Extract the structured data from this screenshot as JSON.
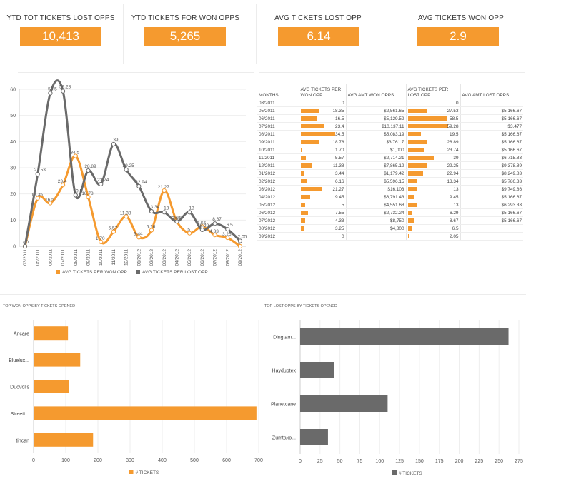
{
  "kpis": [
    {
      "title": "YTD TOT TICKETS LOST OPPS",
      "value": "10,413"
    },
    {
      "title": "YTD TICKETS FOR WON OPPS",
      "value": "5,265"
    },
    {
      "title": "AVG TICKETS LOST OPP",
      "value": "6.14"
    },
    {
      "title": "AVG TICKETS WON OPP",
      "value": "2.9"
    }
  ],
  "chart_data": [
    {
      "type": "line",
      "x": [
        "03/2011",
        "05/2011",
        "06/2011",
        "07/2011",
        "08/2011",
        "09/2011",
        "10/2011",
        "11/2011",
        "12/2011",
        "01/2012",
        "02/2012",
        "03/2012",
        "04/2012",
        "05/2012",
        "06/2012",
        "07/2012",
        "08/2012",
        "09/2012"
      ],
      "ylim": [
        0,
        60
      ],
      "yticks": [
        "0",
        "10",
        "20",
        "30",
        "40",
        "50",
        "60"
      ],
      "legend_position": "bottom",
      "series": [
        {
          "name": "AVG TICKETS PER WON OPP",
          "color": "#f59a2f",
          "values": [
            0,
            18.35,
            16.5,
            23.4,
            34.5,
            18.78,
            1.7,
            5.57,
            11.38,
            3.44,
            6.16,
            21.27,
            9.45,
            5,
            7.55,
            4.33,
            3.25,
            0
          ],
          "labels": [
            "0",
            "18.35",
            "16.5",
            "23.4",
            "34.5",
            "18.78",
            "1.70",
            "5.57",
            "11.38",
            "3.44",
            "6.16",
            "21.27",
            "9.45",
            "5",
            "7.55",
            "4.33",
            "3.25",
            "0"
          ]
        },
        {
          "name": "AVG TICKETS PER LOST OPP",
          "color": "#6a6a6a",
          "values": [
            0,
            27.53,
            58.5,
            59.28,
            19.5,
            28.89,
            23.74,
            39,
            29.25,
            22.94,
            13.34,
            13,
            9.45,
            13,
            6.29,
            8.67,
            6.5,
            2.05
          ],
          "labels": [
            "0",
            "27.53",
            "58.5",
            "59.28",
            "19.5",
            "28.89",
            "23.74",
            "39",
            "29.25",
            "22.94",
            "13.34",
            "13",
            "9.45",
            "13",
            "6.29",
            "8.67",
            "6.5",
            "2.05"
          ]
        }
      ]
    },
    {
      "type": "table",
      "columns": [
        "MONTHS",
        "AVG TICKETS PER WON OPP",
        "AVG AMT WON OPPS",
        "AVG TICKETS PER LOST OPP",
        "AVG AMT LOST OPPS"
      ],
      "rows": [
        [
          "03/2011",
          "0",
          "",
          "0",
          ""
        ],
        [
          "05/2011",
          "18.35",
          "$2,561.65",
          "27.53",
          "$5,166.67"
        ],
        [
          "06/2011",
          "16.5",
          "$5,129.59",
          "58.5",
          "$5,166.67"
        ],
        [
          "07/2011",
          "23.4",
          "$10,137.11",
          "59.28",
          "$3,477"
        ],
        [
          "08/2011",
          "34.5",
          "$5,083.19",
          "19.5",
          "$5,166.67"
        ],
        [
          "09/2011",
          "18.78",
          "$3,761.7",
          "28.89",
          "$5,166.67"
        ],
        [
          "10/2011",
          "1.70",
          "$1,000",
          "23.74",
          "$5,166.67"
        ],
        [
          "11/2011",
          "5.57",
          "$2,714.21",
          "39",
          "$6,715.83"
        ],
        [
          "12/2011",
          "11.38",
          "$7,865.19",
          "29.25",
          "$9,378.89"
        ],
        [
          "01/2012",
          "3.44",
          "$1,179.42",
          "22.94",
          "$8,249.83"
        ],
        [
          "02/2012",
          "6.16",
          "$5,596.15",
          "13.34",
          "$5,786.33"
        ],
        [
          "03/2012",
          "21.27",
          "$16,103",
          "13",
          "$9,749.86"
        ],
        [
          "04/2012",
          "9.45",
          "$6,791.43",
          "9.45",
          "$5,166.67"
        ],
        [
          "05/2012",
          "5",
          "$4,551.68",
          "13",
          "$6,293.33"
        ],
        [
          "06/2012",
          "7.55",
          "$2,732.24",
          "6.29",
          "$5,166.67"
        ],
        [
          "07/2012",
          "4.33",
          "$8,750",
          "8.67",
          "$5,166.67"
        ],
        [
          "08/2012",
          "3.25",
          "$4,800",
          "6.5",
          ""
        ],
        [
          "09/2012",
          "0",
          "",
          "2.05",
          ""
        ]
      ]
    },
    {
      "type": "bar",
      "orientation": "horizontal",
      "title": "TOP WON OPPS BY TICKETS OPENED",
      "categories": [
        "Ancare",
        "Bluelux...",
        "Duovolis",
        "Streett...",
        "tincan"
      ],
      "values": [
        107,
        145,
        110,
        693,
        185
      ],
      "xlim": [
        0,
        700
      ],
      "xticks": [
        "0",
        "100",
        "200",
        "300",
        "400",
        "500",
        "600",
        "700"
      ],
      "legend": "# TICKETS",
      "color": "#f59a2f"
    },
    {
      "type": "bar",
      "orientation": "horizontal",
      "title": "TOP LOST OPPS BY TICKETS OPENED",
      "categories": [
        "Dingtam...",
        "Haydubtex",
        "Planetcane",
        "Zumtaxo..."
      ],
      "values": [
        262,
        43,
        110,
        35
      ],
      "xlim": [
        0,
        275
      ],
      "xticks": [
        "0",
        "25",
        "50",
        "75",
        "100",
        "125",
        "150",
        "175",
        "200",
        "225",
        "250",
        "275"
      ],
      "legend": "# TICKETS",
      "color": "#6a6a6a"
    }
  ]
}
